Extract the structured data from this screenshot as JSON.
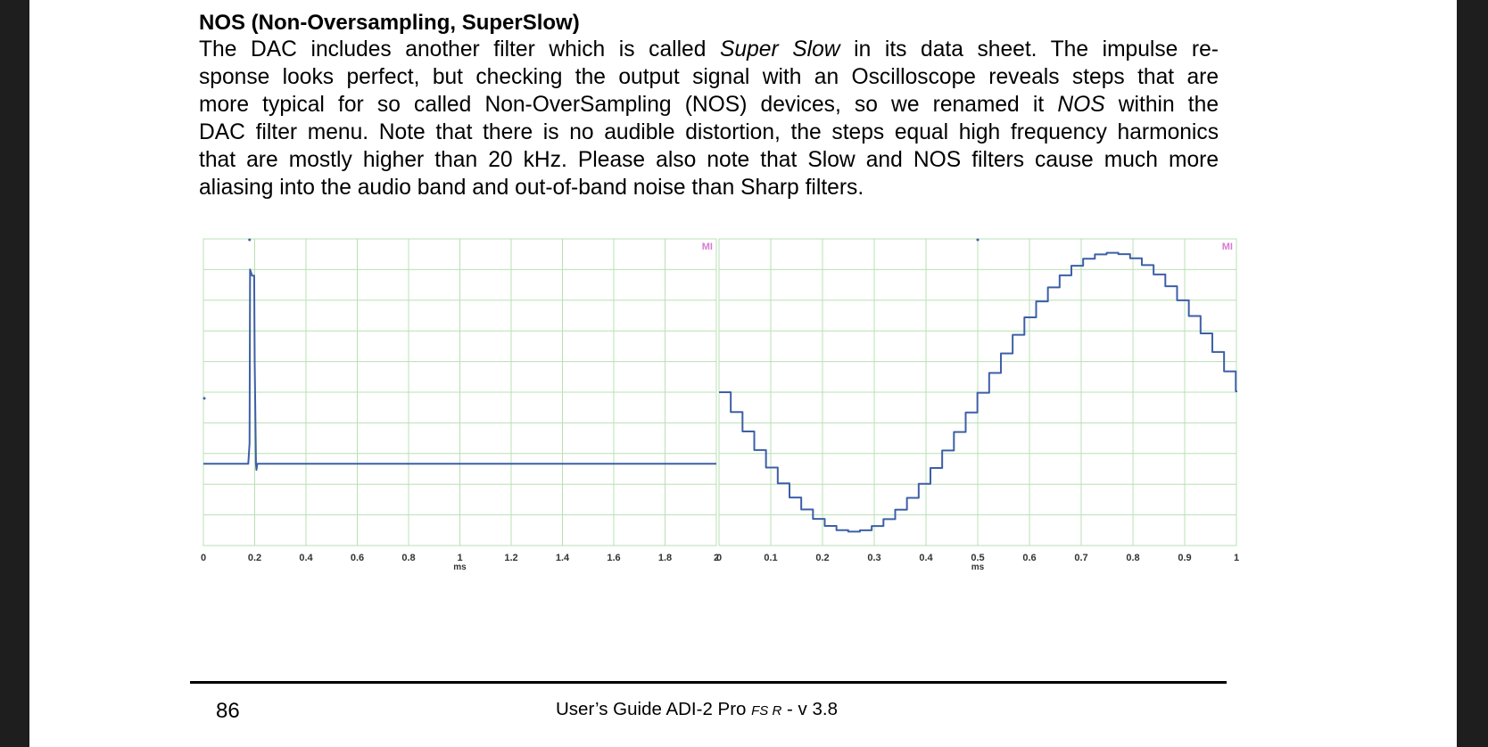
{
  "heading": "NOS (Non-Oversampling, SuperSlow)",
  "paragraph": {
    "line1_a": "The DAC includes another filter which is called ",
    "line1_em": "Super Slow",
    "line1_b": " in its data sheet. The impulse re-",
    "line2": "sponse looks perfect, but checking the output signal with an Oscilloscope reveals steps that are",
    "line3_a": "more typical for so called Non-OverSampling (NOS) devices, so we renamed it ",
    "line3_em": "NOS",
    "line3_b": " within the",
    "line4": "DAC filter menu. Note that there is no audible distortion, the steps equal high frequency harmonics",
    "line5": "that are mostly higher than 20 kHz. Please also note that Slow and NOS filters cause much more",
    "line6": "aliasing into the audio band and out-of-band noise than Sharp filters."
  },
  "chart_data": [
    {
      "type": "line",
      "description_id": "impulse-response",
      "x_unit": "ms",
      "xlim": [
        0,
        2
      ],
      "x_ticks": [
        "0",
        "0.2",
        "0.4",
        "0.6",
        "0.8",
        "1",
        "1.2",
        "1.4",
        "1.6",
        "1.8",
        "2"
      ],
      "ylim": [
        -0.4,
        1.1
      ],
      "grid": true,
      "corner_label": "MI",
      "series": [
        {
          "x": [
            0,
            0.175,
            0.18,
            0.182,
            0.19,
            0.198,
            0.2,
            0.205,
            0.207,
            0.21,
            2.0
          ],
          "y": [
            0,
            0,
            0.1,
            0.95,
            0.92,
            0.92,
            0.5,
            0,
            -0.03,
            0,
            0
          ]
        }
      ],
      "color": "#3d5fa8",
      "grid_color": "#b9e0b4"
    },
    {
      "type": "line",
      "description_id": "nos-sine-output",
      "x_unit": "ms",
      "xlim": [
        0,
        1
      ],
      "x_ticks": [
        "0",
        "0.1",
        "0.2",
        "0.3",
        "0.4",
        "0.5",
        "0.6",
        "0.7",
        "0.8",
        "0.9",
        "1"
      ],
      "ylim": [
        -1.1,
        1.1
      ],
      "grid": true,
      "corner_label": "MI",
      "signal": {
        "shape": "sine",
        "frequency_khz": 1,
        "phase": "starts at zero, falling",
        "step_ms": 0.0227,
        "amplitude": 1
      },
      "color": "#3d5fa8",
      "grid_color": "#b9e0b4"
    }
  ],
  "footer": {
    "page_number": "86",
    "title_main": "User’s Guide ADI-2 Pro ",
    "title_fs": "FS R",
    "title_version": " -  v 3.8"
  }
}
